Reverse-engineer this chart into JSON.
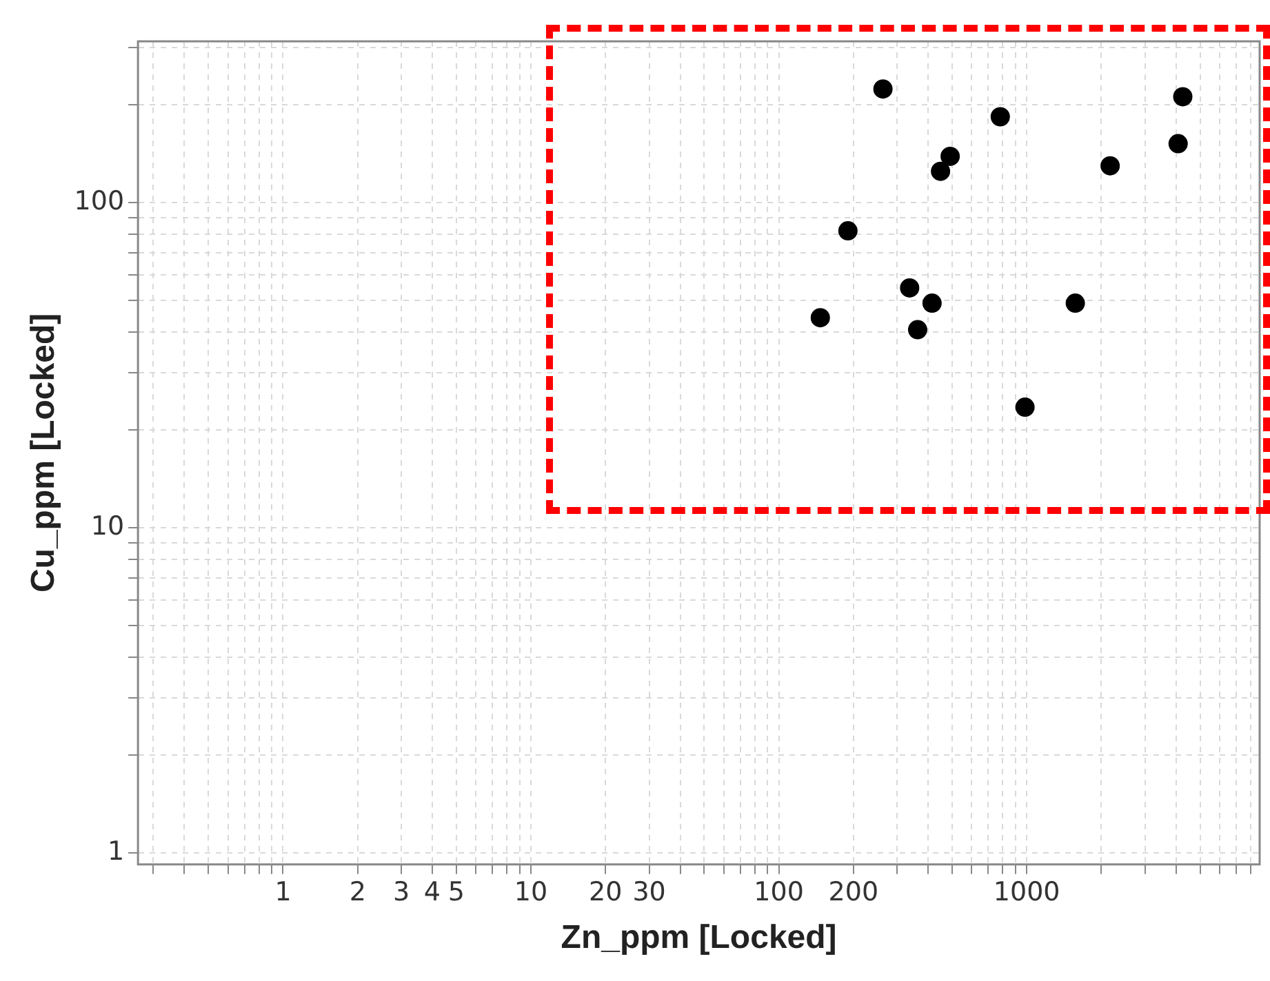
{
  "chart_data": {
    "type": "scatter",
    "xlabel": "Zn_ppm [Locked]",
    "ylabel": "Cu_ppm [Locked]",
    "log": "xy",
    "grid": true,
    "marker": "circle",
    "legend": false,
    "x": [
      263,
      782,
      4260,
      4080,
      491,
      449,
      2170,
      190,
      337,
      415,
      1570,
      147,
      363,
      984
    ],
    "values": [
      224,
      184,
      212,
      152,
      139,
      125,
      130,
      82,
      54.7,
      49.1,
      49.1,
      44.3,
      40.7,
      23.5
    ],
    "color": "#000000",
    "xlim": [
      0.26,
      8700
    ],
    "xticks": [
      {
        "value": 0.3,
        "label": null
      },
      {
        "value": 0.4,
        "label": null
      },
      {
        "value": 0.5,
        "label": null
      },
      {
        "value": 0.6,
        "label": null
      },
      {
        "value": 0.7,
        "label": null
      },
      {
        "value": 0.8,
        "label": null
      },
      {
        "value": 0.9,
        "label": null
      },
      1,
      2,
      3,
      4,
      5,
      {
        "value": 6,
        "label": null
      },
      {
        "value": 7,
        "label": null
      },
      {
        "value": 8,
        "label": null
      },
      {
        "value": 9,
        "label": null
      },
      10,
      20,
      30,
      {
        "value": 40,
        "label": null
      },
      {
        "value": 50,
        "label": null
      },
      {
        "value": 60,
        "label": null
      },
      {
        "value": 70,
        "label": null
      },
      {
        "value": 80,
        "label": null
      },
      {
        "value": 90,
        "label": null
      },
      100,
      200,
      {
        "value": 300,
        "label": null
      },
      {
        "value": 400,
        "label": null
      },
      {
        "value": 500,
        "label": null
      },
      {
        "value": 600,
        "label": null
      },
      {
        "value": 700,
        "label": null
      },
      {
        "value": 800,
        "label": null
      },
      {
        "value": 900,
        "label": null
      },
      1000,
      {
        "value": 2000,
        "label": null
      },
      {
        "value": 3000,
        "label": null
      },
      {
        "value": 4000,
        "label": null
      },
      {
        "value": 5000,
        "label": null
      },
      {
        "value": 6000,
        "label": null
      },
      {
        "value": 7000,
        "label": null
      },
      {
        "value": 8000,
        "label": null
      }
    ],
    "ylim": [
      0.92,
      314
    ],
    "yticks": [
      1,
      {
        "value": 2,
        "label": null
      },
      {
        "value": 3,
        "label": null
      },
      {
        "value": 4,
        "label": null
      },
      {
        "value": 5,
        "label": null
      },
      {
        "value": 6,
        "label": null
      },
      {
        "value": 7,
        "label": null
      },
      {
        "value": 8,
        "label": null
      },
      {
        "value": 9,
        "label": null
      },
      10,
      {
        "value": 20,
        "label": null
      },
      {
        "value": 30,
        "label": null
      },
      {
        "value": 40,
        "label": null
      },
      {
        "value": 50,
        "label": null
      },
      {
        "value": 60,
        "label": null
      },
      {
        "value": 70,
        "label": null
      },
      {
        "value": 80,
        "label": null
      },
      {
        "value": 90,
        "label": null
      },
      100,
      {
        "value": 200,
        "label": null
      },
      {
        "value": 300,
        "label": null
      }
    ]
  }
}
